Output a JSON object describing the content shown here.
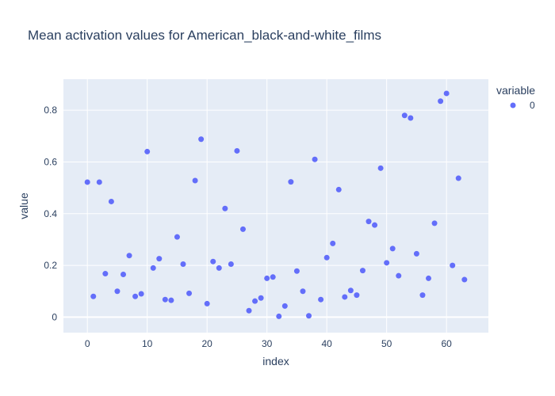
{
  "chart_data": {
    "type": "scatter",
    "title": "Mean activation values for American_black-and-white_films",
    "xlabel": "index",
    "ylabel": "value",
    "xlim": [
      -4,
      67
    ],
    "ylim": [
      -0.06,
      0.92
    ],
    "xticks": [
      0,
      10,
      20,
      30,
      40,
      50,
      60
    ],
    "yticks": [
      0,
      0.2,
      0.4,
      0.6,
      0.8
    ],
    "xtick_labels": [
      "0",
      "10",
      "20",
      "30",
      "40",
      "50",
      "60"
    ],
    "ytick_labels": [
      "0",
      "0.2",
      "0.4",
      "0.6",
      "0.8"
    ],
    "grid": true,
    "legend": {
      "title": "variable",
      "position": "top-right"
    },
    "colors": {
      "plot_bg": "#e5ecf6",
      "grid": "#ffffff",
      "marker": "#636efa",
      "text": "#2a3f5f"
    },
    "series": [
      {
        "name": "0",
        "x": [
          0,
          1,
          2,
          3,
          4,
          5,
          6,
          7,
          8,
          9,
          10,
          11,
          12,
          13,
          14,
          15,
          16,
          17,
          18,
          19,
          20,
          21,
          22,
          23,
          24,
          25,
          26,
          27,
          28,
          29,
          30,
          31,
          32,
          33,
          34,
          35,
          36,
          37,
          38,
          39,
          40,
          41,
          42,
          43,
          44,
          45,
          46,
          47,
          48,
          49,
          50,
          51,
          52,
          53,
          54,
          55,
          56,
          57,
          58,
          59,
          60,
          61,
          62,
          63
        ],
        "y": [
          0.522,
          0.08,
          0.522,
          0.168,
          0.447,
          0.1,
          0.165,
          0.238,
          0.08,
          0.09,
          0.64,
          0.19,
          0.226,
          0.068,
          0.065,
          0.31,
          0.205,
          0.092,
          0.528,
          0.688,
          0.052,
          0.215,
          0.19,
          0.42,
          0.205,
          0.643,
          0.34,
          0.025,
          0.062,
          0.074,
          0.15,
          0.155,
          0.003,
          0.043,
          0.523,
          0.178,
          0.1,
          0.005,
          0.61,
          0.068,
          0.23,
          0.285,
          0.493,
          0.078,
          0.103,
          0.085,
          0.18,
          0.37,
          0.356,
          0.576,
          0.21,
          0.265,
          0.16,
          0.78,
          0.77,
          0.245,
          0.085,
          0.15,
          0.363,
          0.835,
          0.865,
          0.2,
          0.537,
          0.145
        ]
      }
    ]
  }
}
